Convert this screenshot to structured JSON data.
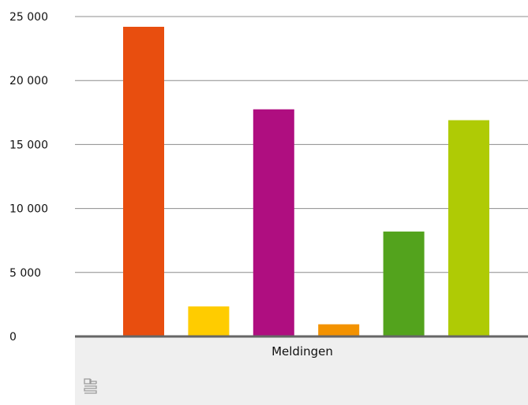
{
  "chart_data": {
    "type": "bar",
    "categories": [
      "Meldingen"
    ],
    "series": [
      {
        "values": [
          24200
        ],
        "color": "#e84e0f"
      },
      {
        "values": [
          2350
        ],
        "color": "#ffcc00"
      },
      {
        "values": [
          17750
        ],
        "color": "#af0e80"
      },
      {
        "values": [
          950
        ],
        "color": "#f39200"
      },
      {
        "values": [
          8200
        ],
        "color": "#53a31d"
      },
      {
        "values": [
          16900
        ],
        "color": "#afcb05"
      }
    ],
    "ylim": [
      0,
      25000
    ],
    "yticks": [
      0,
      5000,
      10000,
      15000,
      20000,
      25000
    ],
    "ytick_labels": [
      "0",
      "5 000",
      "10 000",
      "15 000",
      "20 000",
      "25 000"
    ],
    "grid": true,
    "legend": "none"
  },
  "footer": {
    "logo_icon": "cbs-logo-icon"
  }
}
